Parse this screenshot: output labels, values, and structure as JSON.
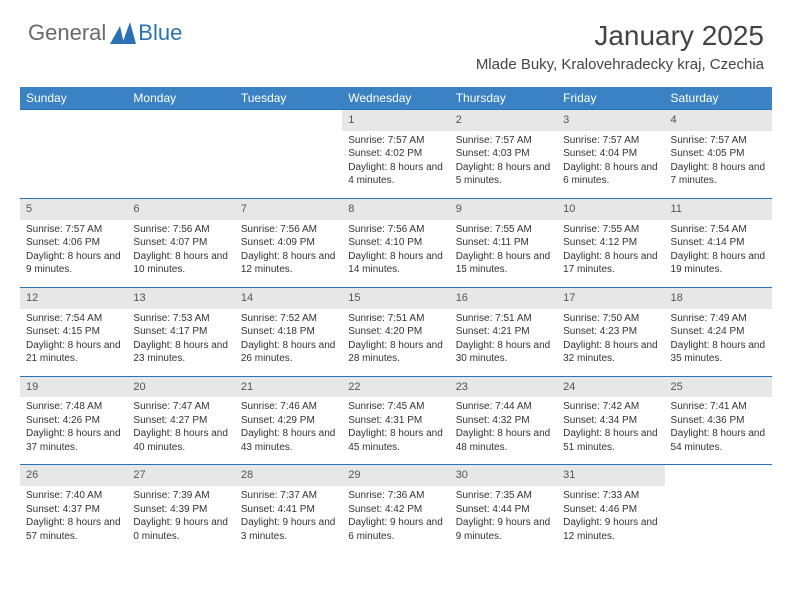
{
  "brand": {
    "general": "General",
    "blue": "Blue"
  },
  "title": "January 2025",
  "location": "Mlade Buky, Kralovehradecky kraj, Czechia",
  "colors": {
    "header_bg": "#3b82c4",
    "header_text": "#ffffff",
    "daynum_bg": "#e7e7e7",
    "row_border": "#2a72b5",
    "body_text": "#333333",
    "logo_gray": "#6a6a6a",
    "logo_blue": "#2a72b5",
    "page_bg": "#ffffff"
  },
  "dayNames": [
    "Sunday",
    "Monday",
    "Tuesday",
    "Wednesday",
    "Thursday",
    "Friday",
    "Saturday"
  ],
  "weeks": [
    [
      null,
      null,
      null,
      {
        "n": "1",
        "sr": "7:57 AM",
        "ss": "4:02 PM",
        "dl": "8 hours and 4 minutes."
      },
      {
        "n": "2",
        "sr": "7:57 AM",
        "ss": "4:03 PM",
        "dl": "8 hours and 5 minutes."
      },
      {
        "n": "3",
        "sr": "7:57 AM",
        "ss": "4:04 PM",
        "dl": "8 hours and 6 minutes."
      },
      {
        "n": "4",
        "sr": "7:57 AM",
        "ss": "4:05 PM",
        "dl": "8 hours and 7 minutes."
      }
    ],
    [
      {
        "n": "5",
        "sr": "7:57 AM",
        "ss": "4:06 PM",
        "dl": "8 hours and 9 minutes."
      },
      {
        "n": "6",
        "sr": "7:56 AM",
        "ss": "4:07 PM",
        "dl": "8 hours and 10 minutes."
      },
      {
        "n": "7",
        "sr": "7:56 AM",
        "ss": "4:09 PM",
        "dl": "8 hours and 12 minutes."
      },
      {
        "n": "8",
        "sr": "7:56 AM",
        "ss": "4:10 PM",
        "dl": "8 hours and 14 minutes."
      },
      {
        "n": "9",
        "sr": "7:55 AM",
        "ss": "4:11 PM",
        "dl": "8 hours and 15 minutes."
      },
      {
        "n": "10",
        "sr": "7:55 AM",
        "ss": "4:12 PM",
        "dl": "8 hours and 17 minutes."
      },
      {
        "n": "11",
        "sr": "7:54 AM",
        "ss": "4:14 PM",
        "dl": "8 hours and 19 minutes."
      }
    ],
    [
      {
        "n": "12",
        "sr": "7:54 AM",
        "ss": "4:15 PM",
        "dl": "8 hours and 21 minutes."
      },
      {
        "n": "13",
        "sr": "7:53 AM",
        "ss": "4:17 PM",
        "dl": "8 hours and 23 minutes."
      },
      {
        "n": "14",
        "sr": "7:52 AM",
        "ss": "4:18 PM",
        "dl": "8 hours and 26 minutes."
      },
      {
        "n": "15",
        "sr": "7:51 AM",
        "ss": "4:20 PM",
        "dl": "8 hours and 28 minutes."
      },
      {
        "n": "16",
        "sr": "7:51 AM",
        "ss": "4:21 PM",
        "dl": "8 hours and 30 minutes."
      },
      {
        "n": "17",
        "sr": "7:50 AM",
        "ss": "4:23 PM",
        "dl": "8 hours and 32 minutes."
      },
      {
        "n": "18",
        "sr": "7:49 AM",
        "ss": "4:24 PM",
        "dl": "8 hours and 35 minutes."
      }
    ],
    [
      {
        "n": "19",
        "sr": "7:48 AM",
        "ss": "4:26 PM",
        "dl": "8 hours and 37 minutes."
      },
      {
        "n": "20",
        "sr": "7:47 AM",
        "ss": "4:27 PM",
        "dl": "8 hours and 40 minutes."
      },
      {
        "n": "21",
        "sr": "7:46 AM",
        "ss": "4:29 PM",
        "dl": "8 hours and 43 minutes."
      },
      {
        "n": "22",
        "sr": "7:45 AM",
        "ss": "4:31 PM",
        "dl": "8 hours and 45 minutes."
      },
      {
        "n": "23",
        "sr": "7:44 AM",
        "ss": "4:32 PM",
        "dl": "8 hours and 48 minutes."
      },
      {
        "n": "24",
        "sr": "7:42 AM",
        "ss": "4:34 PM",
        "dl": "8 hours and 51 minutes."
      },
      {
        "n": "25",
        "sr": "7:41 AM",
        "ss": "4:36 PM",
        "dl": "8 hours and 54 minutes."
      }
    ],
    [
      {
        "n": "26",
        "sr": "7:40 AM",
        "ss": "4:37 PM",
        "dl": "8 hours and 57 minutes."
      },
      {
        "n": "27",
        "sr": "7:39 AM",
        "ss": "4:39 PM",
        "dl": "9 hours and 0 minutes."
      },
      {
        "n": "28",
        "sr": "7:37 AM",
        "ss": "4:41 PM",
        "dl": "9 hours and 3 minutes."
      },
      {
        "n": "29",
        "sr": "7:36 AM",
        "ss": "4:42 PM",
        "dl": "9 hours and 6 minutes."
      },
      {
        "n": "30",
        "sr": "7:35 AM",
        "ss": "4:44 PM",
        "dl": "9 hours and 9 minutes."
      },
      {
        "n": "31",
        "sr": "7:33 AM",
        "ss": "4:46 PM",
        "dl": "9 hours and 12 minutes."
      },
      null
    ]
  ],
  "labels": {
    "sunrise": "Sunrise:",
    "sunset": "Sunset:",
    "daylight": "Daylight:"
  }
}
